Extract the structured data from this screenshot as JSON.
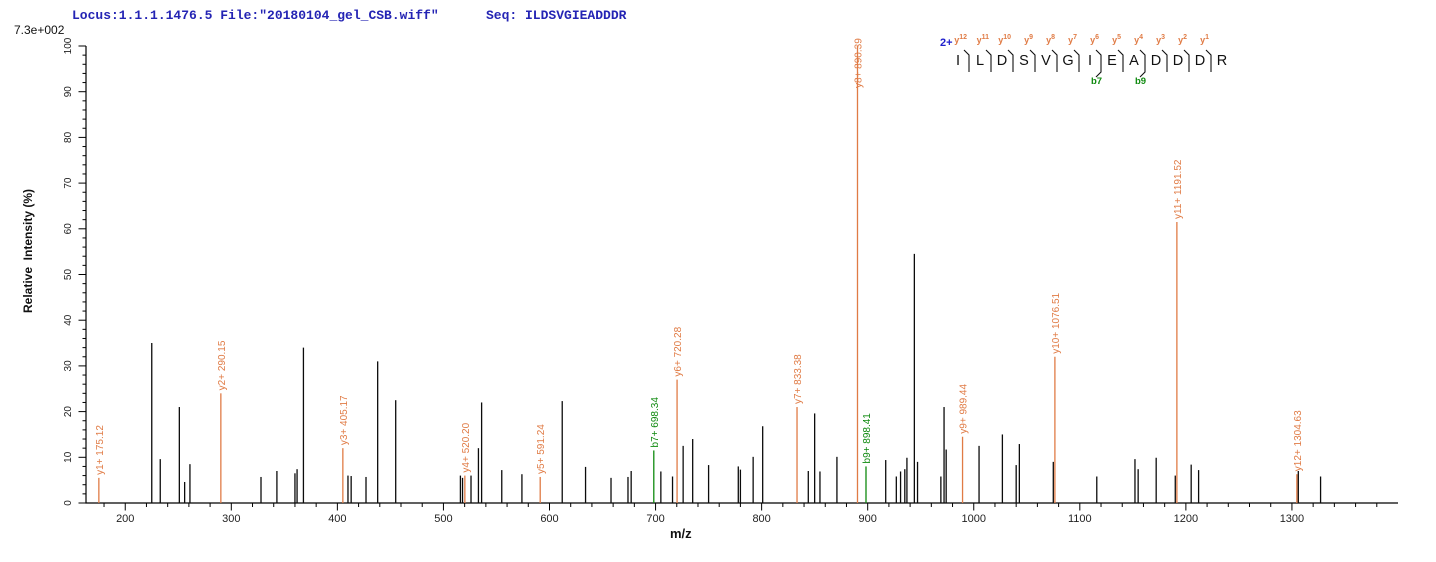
{
  "header": {
    "locus": "Locus:1.1.1.1476.5 File:\"20180104_gel_CSB.wiff\"",
    "seq": "Seq: ILDSVGIEADDDR"
  },
  "scale_label": "7.3e+002",
  "peptide": {
    "charge": "2+",
    "residues": [
      "I",
      "L",
      "D",
      "S",
      "V",
      "G",
      "I",
      "E",
      "A",
      "D",
      "D",
      "D",
      "R"
    ],
    "y_ion_labels": [
      "y12",
      "y11",
      "y10",
      "y9",
      "y8",
      "y7",
      "y6",
      "y5",
      "y4",
      "y3",
      "y2",
      "y1"
    ],
    "b_ion_labels": [
      {
        "boundary": 7,
        "label": "b7"
      },
      {
        "boundary": 9,
        "label": "b9"
      }
    ]
  },
  "chart_data": {
    "type": "bar",
    "subtype": "centroided MS/MS peptide fragmentation spectrum",
    "title": "",
    "xlabel": "m/z",
    "ylabel": "Relative  Intensity (%)",
    "xlim": [
      163,
      1400
    ],
    "ylim": [
      0,
      100
    ],
    "x_major_ticks": [
      200,
      300,
      400,
      500,
      600,
      700,
      800,
      900,
      1000,
      1100,
      1200,
      1300
    ],
    "x_minor_step": 20,
    "y_major_ticks": [
      0,
      10,
      20,
      30,
      40,
      50,
      60,
      70,
      80,
      90,
      100
    ],
    "y_minor_step": 2,
    "grid": false,
    "legend": "none",
    "colors": {
      "y_ion": "#e07b45",
      "b_ion": "#0f8a0f",
      "peak": "#0b0b0b",
      "axis": "#000000",
      "tick_label": "#222222"
    },
    "annotated_peaks": [
      {
        "label": "y1+ 175.12",
        "ion": "y",
        "mz": 175.12,
        "intensity": 5.5
      },
      {
        "label": "y2+ 290.15",
        "ion": "y",
        "mz": 290.15,
        "intensity": 24
      },
      {
        "label": "y3+ 405.17",
        "ion": "y",
        "mz": 405.17,
        "intensity": 12
      },
      {
        "label": "y4+ 520.20",
        "ion": "y",
        "mz": 520.2,
        "intensity": 6
      },
      {
        "label": "y5+ 591.24",
        "ion": "y",
        "mz": 591.24,
        "intensity": 5.7
      },
      {
        "label": "b7+ 698.34",
        "ion": "b",
        "mz": 698.34,
        "intensity": 11.5
      },
      {
        "label": "y6+ 720.28",
        "ion": "y",
        "mz": 720.28,
        "intensity": 27
      },
      {
        "label": "y7+ 833.38",
        "ion": "y",
        "mz": 833.38,
        "intensity": 21
      },
      {
        "label": "y8+ 890.39",
        "ion": "y",
        "mz": 890.39,
        "intensity": 100
      },
      {
        "label": "b9+ 898.41",
        "ion": "b",
        "mz": 898.41,
        "intensity": 8
      },
      {
        "label": "y9+ 989.44",
        "ion": "y",
        "mz": 989.44,
        "intensity": 14.5
      },
      {
        "label": "y10+ 1076.51",
        "ion": "y",
        "mz": 1076.51,
        "intensity": 32
      },
      {
        "label": "y11+ 1191.52",
        "ion": "y",
        "mz": 1191.52,
        "intensity": 61.5
      },
      {
        "label": "y12+ 1304.63",
        "ion": "y",
        "mz": 1304.63,
        "intensity": 6.3
      }
    ],
    "unannotated_peaks": [
      [
        225,
        35
      ],
      [
        233,
        9.6
      ],
      [
        251,
        21
      ],
      [
        256,
        4.6
      ],
      [
        261,
        8.5
      ],
      [
        328,
        5.7
      ],
      [
        343,
        7
      ],
      [
        360,
        6.5
      ],
      [
        362,
        7.4
      ],
      [
        368,
        34
      ],
      [
        410,
        6
      ],
      [
        413,
        5.9
      ],
      [
        427,
        5.7
      ],
      [
        438,
        31
      ],
      [
        455,
        22.5
      ],
      [
        516,
        6
      ],
      [
        518,
        5.5
      ],
      [
        526,
        6
      ],
      [
        533,
        12
      ],
      [
        536,
        22
      ],
      [
        555,
        7.2
      ],
      [
        574,
        6.3
      ],
      [
        612,
        22.3
      ],
      [
        634,
        7.9
      ],
      [
        658,
        5.5
      ],
      [
        674,
        5.7
      ],
      [
        677,
        7
      ],
      [
        705,
        6.9
      ],
      [
        716,
        5.8
      ],
      [
        726,
        12.5
      ],
      [
        735,
        14
      ],
      [
        750,
        8.3
      ],
      [
        778,
        8
      ],
      [
        780,
        7.3
      ],
      [
        792,
        10.1
      ],
      [
        801,
        16.8
      ],
      [
        844,
        7
      ],
      [
        850,
        19.6
      ],
      [
        855,
        6.9
      ],
      [
        871,
        10.1
      ],
      [
        917,
        9.4
      ],
      [
        927,
        5.8
      ],
      [
        931,
        6.9
      ],
      [
        935,
        7.4
      ],
      [
        937,
        9.9
      ],
      [
        944,
        54.5
      ],
      [
        947,
        9
      ],
      [
        969,
        5.8
      ],
      [
        972,
        21
      ],
      [
        974,
        11.7
      ],
      [
        1005,
        12.5
      ],
      [
        1027,
        15
      ],
      [
        1040,
        8.3
      ],
      [
        1043,
        12.9
      ],
      [
        1075,
        9
      ],
      [
        1116,
        5.8
      ],
      [
        1152,
        9.6
      ],
      [
        1155,
        7.4
      ],
      [
        1172,
        9.9
      ],
      [
        1190,
        6
      ],
      [
        1205,
        8.4
      ],
      [
        1212,
        7.2
      ],
      [
        1306,
        7
      ],
      [
        1327,
        5.8
      ]
    ]
  }
}
